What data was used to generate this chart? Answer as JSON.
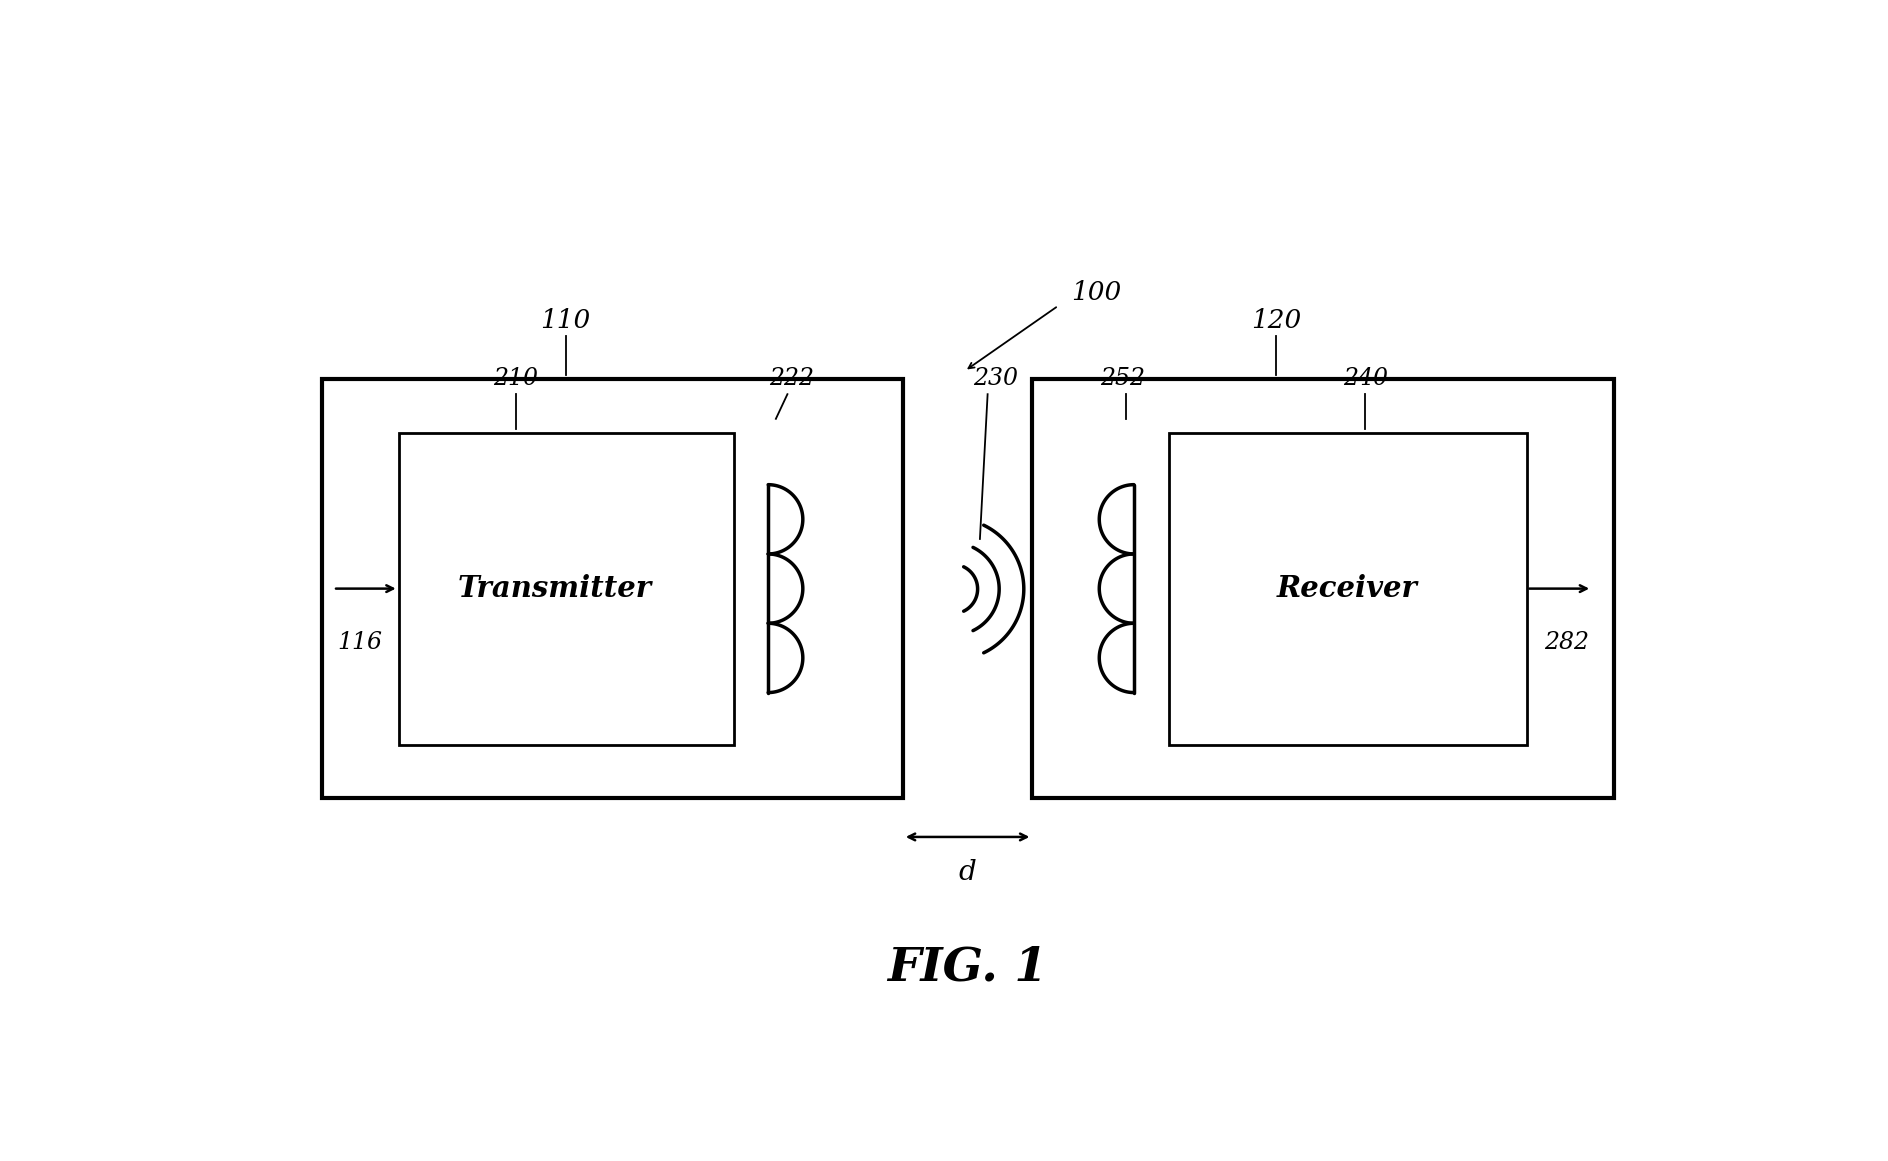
{
  "bg_color": "#ffffff",
  "fig_label": "FIG. 1",
  "label_100": "100",
  "label_110": "110",
  "label_120": "120",
  "label_210": "210",
  "label_222": "222",
  "label_230": "230",
  "label_240": "240",
  "label_252": "252",
  "label_116": "116",
  "label_282": "282",
  "label_d": "d",
  "transmitter_text": "Transmitter",
  "receiver_text": "Receiver",
  "line_color": "#000000",
  "lw_outer": 3.0,
  "lw_inner": 2.0,
  "lw_coil": 2.5,
  "lw_arrow": 1.8,
  "lw_ref": 1.3
}
